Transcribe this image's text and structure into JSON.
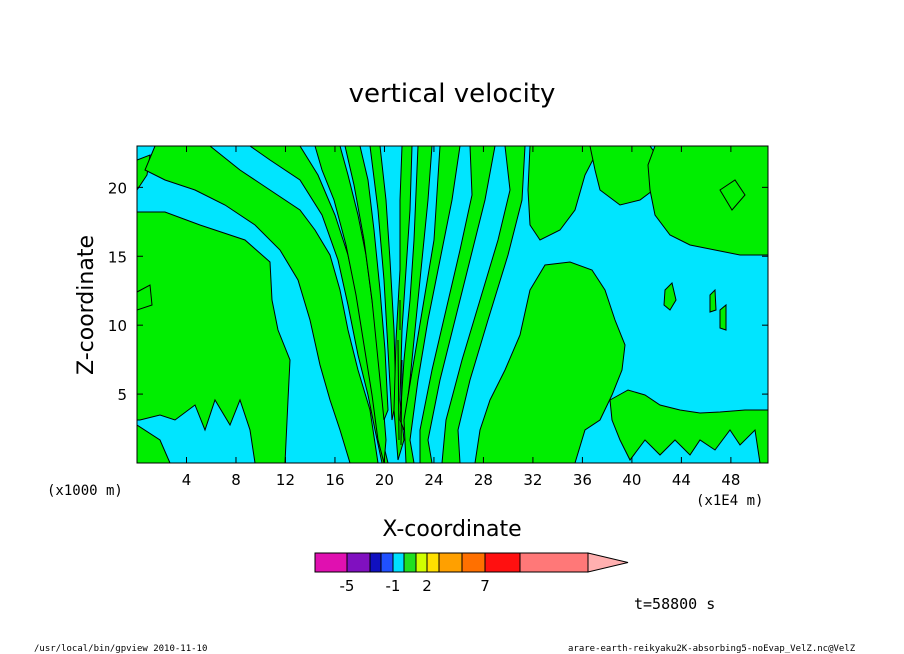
{
  "chart_data": {
    "type": "heatmap",
    "title": "vertical velocity",
    "xlabel": "X-coordinate",
    "ylabel": "Z-coordinate",
    "x_unit_left": "(x1000 m)",
    "x_unit_right": "(x1E4 m)",
    "xlim": [
      0,
      51
    ],
    "ylim": [
      0,
      23
    ],
    "x_ticks": [
      4,
      8,
      12,
      16,
      20,
      24,
      28,
      32,
      36,
      40,
      44,
      48
    ],
    "y_ticks": [
      5,
      10,
      15,
      20
    ],
    "x_tick_labels": [
      "4",
      "8",
      "12",
      "16",
      "20",
      "24",
      "28",
      "32",
      "36",
      "40",
      "44",
      "48"
    ],
    "y_tick_labels": [
      "5",
      "10",
      "15",
      "20"
    ],
    "colorbar": {
      "colors": [
        "#e010b0",
        "#8010c0",
        "#1010c0",
        "#2050ff",
        "#00e0ff",
        "#20e020",
        "#d0ff00",
        "#ffe000",
        "#ffa000",
        "#ff7000",
        "#ff1010",
        "#ff7878",
        "#ffb0b0"
      ],
      "tick_labels": [
        "-5",
        "-1",
        "2",
        "7"
      ]
    },
    "regions": {
      "positive_color": "#00ee00",
      "negative_color": "#00e5ff"
    },
    "time_label": "t=58800 s"
  },
  "footer": {
    "left": "/usr/local/bin/gpview  2010-11-10",
    "right": "arare-earth-reikyaku2K-absorbing5-noEvap_VelZ.nc@VelZ"
  }
}
